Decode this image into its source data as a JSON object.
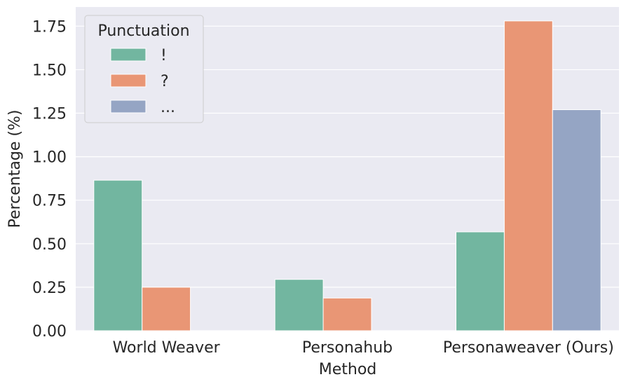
{
  "chart_data": {
    "type": "bar",
    "categories": [
      "World Weaver",
      "Personahub",
      "Personaweaver (Ours)"
    ],
    "series": [
      {
        "name": "!",
        "values": [
          0.865,
          0.295,
          0.568
        ],
        "color": "#72b6a0"
      },
      {
        "name": "?",
        "values": [
          0.25,
          0.188,
          1.78
        ],
        "color": "#e99675"
      },
      {
        "name": "...",
        "values": [
          0.0,
          0.0,
          1.27
        ],
        "color": "#95a5c4"
      }
    ],
    "xlabel": "Method",
    "ylabel": "Percentage (%)",
    "ylim": [
      0,
      1.86
    ],
    "yticks": [
      "0.00",
      "0.25",
      "0.50",
      "0.75",
      "1.00",
      "1.25",
      "1.50",
      "1.75"
    ],
    "ytick_values": [
      0,
      0.25,
      0.5,
      0.75,
      1.0,
      1.25,
      1.5,
      1.75
    ],
    "legend": {
      "title": "Punctuation",
      "position": "top-left"
    },
    "grid": true,
    "background": "#eaeaf2"
  }
}
